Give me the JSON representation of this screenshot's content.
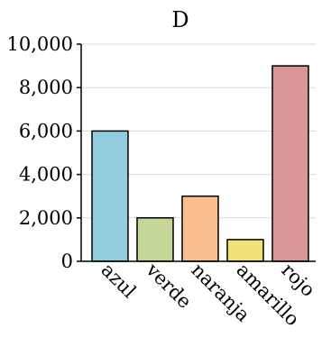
{
  "chart_data": {
    "type": "bar",
    "title": "D",
    "categories": [
      "azul",
      "verde",
      "naranja",
      "amarillo",
      "rojo"
    ],
    "values": [
      6000,
      2000,
      3000,
      1000,
      9000
    ],
    "colors": [
      "#92cddf",
      "#c5d89a",
      "#fbbe8e",
      "#f0e274",
      "#d99695"
    ],
    "ylim": [
      0,
      10000
    ],
    "yticks": [
      0,
      2000,
      4000,
      6000,
      8000,
      10000
    ],
    "ytick_labels": [
      "0",
      "2,000",
      "4,000",
      "6,000",
      "8,000",
      "10,000"
    ],
    "xlabel": "",
    "ylabel": "",
    "grid": true,
    "gridlines": [
      2000,
      4000,
      6000,
      8000,
      10000
    ],
    "grid_color": "#d9d9d9",
    "bar_edge_color": "#000000",
    "axis_color": "#000000"
  }
}
